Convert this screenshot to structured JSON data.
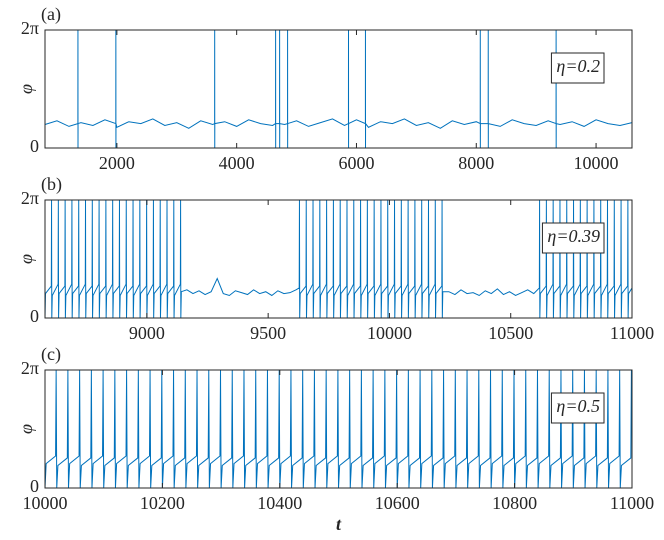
{
  "chart_data": [
    {
      "type": "line",
      "panel_label": "(a)",
      "annotation": "η=0.2",
      "ylabel": "φ",
      "color": "#0072bd",
      "xlim": [
        800,
        10600
      ],
      "xticks": [
        2000,
        4000,
        6000,
        8000,
        10000
      ],
      "ylim": [
        0,
        6.283
      ],
      "yticks": [
        0,
        {
          "value": 6.283,
          "label": "2π"
        }
      ],
      "x": [
        800,
        1000,
        1200,
        1349,
        1350,
        1351,
        1352,
        1400,
        1600,
        1800,
        1982,
        1983,
        1984,
        1985,
        2000,
        2200,
        2400,
        2600,
        2800,
        3000,
        3200,
        3400,
        3600,
        3632,
        3633,
        3634,
        3635,
        3800,
        4000,
        4200,
        4400,
        4600,
        4649,
        4650,
        4651,
        4652,
        4716,
        4717,
        4718,
        4719,
        4800,
        4849,
        4850,
        4851,
        4852,
        5000,
        5200,
        5400,
        5600,
        5800,
        5866,
        5867,
        5868,
        5869,
        6000,
        6149,
        6150,
        6151,
        6152,
        6200,
        6400,
        6600,
        6800,
        7000,
        7200,
        7400,
        7600,
        7800,
        8000,
        8066,
        8067,
        8068,
        8069,
        8199,
        8200,
        8201,
        8202,
        8400,
        8600,
        8800,
        9000,
        9200,
        9332,
        9333,
        9334,
        9335,
        9400,
        9600,
        9800,
        10000,
        10200,
        10400,
        10600
      ],
      "values": [
        1.25,
        1.45,
        1.15,
        1.3,
        6.283,
        0,
        1.3,
        1.35,
        1.2,
        1.5,
        1.3,
        6.283,
        0,
        1.3,
        1.1,
        1.4,
        1.3,
        1.55,
        1.2,
        1.35,
        1.05,
        1.45,
        1.25,
        1.3,
        6.283,
        0,
        1.3,
        1.4,
        1.15,
        1.5,
        1.3,
        1.2,
        1.3,
        6.283,
        0,
        1.3,
        1.3,
        6.283,
        0,
        1.3,
        1.25,
        1.3,
        6.283,
        0,
        1.3,
        1.45,
        1.15,
        1.35,
        1.55,
        1.2,
        1.3,
        6.283,
        0,
        1.3,
        1.5,
        1.3,
        6.283,
        0,
        1.3,
        1.1,
        1.4,
        1.3,
        1.55,
        1.2,
        1.35,
        1.05,
        1.45,
        1.25,
        1.4,
        1.3,
        6.283,
        0,
        1.3,
        1.3,
        6.283,
        0,
        1.3,
        1.15,
        1.5,
        1.3,
        1.2,
        1.45,
        1.3,
        6.283,
        0,
        1.3,
        1.25,
        1.4,
        1.15,
        1.5,
        1.3,
        1.2,
        1.35
      ]
    },
    {
      "type": "line",
      "panel_label": "(b)",
      "annotation": "η=0.39",
      "ylabel": "φ",
      "color": "#0072bd",
      "xlim": [
        8580,
        11000
      ],
      "xticks": [
        9000,
        9500,
        10000,
        10500,
        11000
      ],
      "ylim": [
        0,
        6.283
      ],
      "yticks": [
        0,
        {
          "value": 6.283,
          "label": "2π"
        }
      ],
      "x": [
        8580,
        8582,
        8606,
        8607,
        8608,
        8610,
        8634,
        8635,
        8636,
        8638,
        8662,
        8663,
        8664,
        8666,
        8690,
        8691,
        8692,
        8694,
        8718,
        8719,
        8720,
        8722,
        8746,
        8747,
        8748,
        8750,
        8774,
        8775,
        8776,
        8778,
        8802,
        8803,
        8804,
        8806,
        8830,
        8831,
        8832,
        8834,
        8858,
        8859,
        8860,
        8862,
        8886,
        8887,
        8888,
        8890,
        8914,
        8915,
        8916,
        8918,
        8942,
        8943,
        8944,
        8946,
        8970,
        8971,
        8972,
        8974,
        8998,
        8999,
        9000,
        9002,
        9026,
        9027,
        9028,
        9030,
        9054,
        9055,
        9056,
        9058,
        9082,
        9083,
        9084,
        9086,
        9110,
        9111,
        9112,
        9114,
        9138,
        9139,
        9140,
        9142,
        9165,
        9190,
        9215,
        9240,
        9265,
        9290,
        9315,
        9340,
        9365,
        9390,
        9415,
        9440,
        9465,
        9490,
        9515,
        9540,
        9565,
        9590,
        9615,
        9628,
        9629,
        9630,
        9632,
        9656,
        9657,
        9658,
        9660,
        9684,
        9685,
        9686,
        9688,
        9712,
        9713,
        9714,
        9716,
        9740,
        9741,
        9742,
        9744,
        9768,
        9769,
        9770,
        9772,
        9796,
        9797,
        9798,
        9800,
        9824,
        9825,
        9826,
        9828,
        9852,
        9853,
        9854,
        9856,
        9880,
        9881,
        9882,
        9884,
        9908,
        9909,
        9910,
        9912,
        9936,
        9937,
        9938,
        9940,
        9964,
        9965,
        9966,
        9968,
        9992,
        9993,
        9994,
        9996,
        10020,
        10021,
        10022,
        10024,
        10048,
        10049,
        10050,
        10052,
        10076,
        10077,
        10078,
        10080,
        10104,
        10105,
        10106,
        10108,
        10132,
        10133,
        10134,
        10136,
        10160,
        10161,
        10162,
        10164,
        10188,
        10189,
        10190,
        10192,
        10216,
        10217,
        10218,
        10220,
        10245,
        10270,
        10295,
        10320,
        10345,
        10370,
        10395,
        10420,
        10445,
        10470,
        10495,
        10520,
        10545,
        10570,
        10595,
        10618,
        10619,
        10620,
        10622,
        10646,
        10647,
        10648,
        10650,
        10674,
        10675,
        10676,
        10678,
        10702,
        10703,
        10704,
        10706,
        10730,
        10731,
        10732,
        10734,
        10758,
        10759,
        10760,
        10762,
        10786,
        10787,
        10788,
        10790,
        10814,
        10815,
        10816,
        10818,
        10842,
        10843,
        10844,
        10846,
        10870,
        10871,
        10872,
        10874,
        10898,
        10899,
        10900,
        10902,
        10926,
        10927,
        10928,
        10930,
        10954,
        10955,
        10956,
        10958,
        10982,
        10983,
        10984,
        10986,
        11000
      ],
      "values": [
        0,
        1.3,
        1.7,
        6.283,
        0,
        1.2,
        1.8,
        6.283,
        0,
        1.3,
        1.7,
        6.283,
        0,
        1.2,
        1.8,
        6.283,
        0,
        1.3,
        1.7,
        6.283,
        0,
        1.2,
        1.8,
        6.283,
        0,
        1.3,
        1.7,
        6.283,
        0,
        1.2,
        1.8,
        6.283,
        0,
        1.3,
        1.7,
        6.283,
        0,
        1.2,
        1.8,
        6.283,
        0,
        1.3,
        1.7,
        6.283,
        0,
        1.2,
        1.8,
        6.283,
        0,
        1.3,
        1.7,
        6.283,
        0,
        1.2,
        1.8,
        6.283,
        0,
        1.3,
        1.7,
        6.283,
        0,
        1.2,
        1.8,
        6.283,
        0,
        1.3,
        1.7,
        6.283,
        0,
        1.2,
        1.8,
        6.283,
        0,
        1.3,
        1.7,
        6.283,
        0,
        1.2,
        1.8,
        6.283,
        0,
        1.4,
        1.5,
        1.3,
        1.45,
        1.25,
        1.4,
        2.1,
        1.3,
        1.2,
        1.45,
        1.35,
        1.25,
        1.5,
        1.3,
        1.4,
        1.2,
        1.45,
        1.3,
        1.35,
        1.5,
        1.6,
        6.283,
        0,
        1.3,
        1.7,
        6.283,
        0,
        1.2,
        1.8,
        6.283,
        0,
        1.3,
        1.7,
        6.283,
        0,
        1.2,
        1.8,
        6.283,
        0,
        1.3,
        1.7,
        6.283,
        0,
        1.2,
        1.8,
        6.283,
        0,
        1.3,
        1.7,
        6.283,
        0,
        1.2,
        1.8,
        6.283,
        0,
        1.3,
        1.7,
        6.283,
        0,
        1.2,
        1.8,
        6.283,
        0,
        1.3,
        1.7,
        6.283,
        0,
        1.2,
        1.8,
        6.283,
        0,
        1.3,
        1.7,
        6.283,
        0,
        1.2,
        1.8,
        6.283,
        0,
        1.3,
        1.7,
        6.283,
        0,
        1.2,
        1.8,
        6.283,
        0,
        1.3,
        1.7,
        6.283,
        0,
        1.2,
        1.8,
        6.283,
        0,
        1.3,
        1.7,
        6.283,
        0,
        1.2,
        1.8,
        6.283,
        0,
        1.3,
        1.7,
        6.283,
        0,
        1.4,
        1.4,
        1.25,
        1.5,
        1.3,
        1.35,
        1.2,
        1.45,
        1.3,
        1.55,
        1.25,
        1.4,
        1.2,
        1.35,
        1.5,
        1.3,
        1.6,
        6.283,
        0,
        1.3,
        1.7,
        6.283,
        0,
        1.2,
        1.8,
        6.283,
        0,
        1.3,
        1.7,
        6.283,
        0,
        1.2,
        1.8,
        6.283,
        0,
        1.3,
        1.7,
        6.283,
        0,
        1.2,
        1.8,
        6.283,
        0,
        1.3,
        1.7,
        6.283,
        0,
        1.2,
        1.8,
        6.283,
        0,
        1.3,
        1.7,
        6.283,
        0,
        1.2,
        1.8,
        6.283,
        0,
        1.3,
        1.7,
        6.283,
        0,
        1.2,
        1.8,
        6.283,
        0,
        1.3,
        1.7,
        6.283,
        0,
        1.3,
        1.6
      ]
    },
    {
      "type": "line",
      "panel_label": "(c)",
      "annotation": "η=0.5",
      "ylabel": "φ",
      "xlabel": "t",
      "color": "#0072bd",
      "xlim": [
        10000,
        11000
      ],
      "xticks": [
        10000,
        10200,
        10400,
        10600,
        10800,
        11000
      ],
      "ylim": [
        0,
        6.283
      ],
      "yticks": [
        0,
        {
          "value": 6.283,
          "label": "2π"
        }
      ],
      "x": [
        10000,
        10002,
        10018,
        10019,
        10020,
        10022,
        10038,
        10039,
        10040,
        10042,
        10058,
        10059,
        10060,
        10062,
        10078,
        10079,
        10080,
        10082,
        10098,
        10099,
        10100,
        10102,
        10118,
        10119,
        10120,
        10122,
        10138,
        10139,
        10140,
        10142,
        10158,
        10159,
        10160,
        10162,
        10178,
        10179,
        10180,
        10182,
        10198,
        10199,
        10200,
        10202,
        10218,
        10219,
        10220,
        10222,
        10238,
        10239,
        10240,
        10242,
        10258,
        10259,
        10260,
        10262,
        10278,
        10279,
        10280,
        10282,
        10298,
        10299,
        10300,
        10302,
        10318,
        10319,
        10320,
        10322,
        10338,
        10339,
        10340,
        10342,
        10358,
        10359,
        10360,
        10362,
        10378,
        10379,
        10380,
        10382,
        10398,
        10399,
        10400,
        10402,
        10418,
        10419,
        10420,
        10422,
        10438,
        10439,
        10440,
        10442,
        10458,
        10459,
        10460,
        10462,
        10478,
        10479,
        10480,
        10482,
        10498,
        10499,
        10500,
        10502,
        10518,
        10519,
        10520,
        10522,
        10538,
        10539,
        10540,
        10542,
        10558,
        10559,
        10560,
        10562,
        10578,
        10579,
        10580,
        10582,
        10598,
        10599,
        10600,
        10602,
        10618,
        10619,
        10620,
        10622,
        10638,
        10639,
        10640,
        10642,
        10658,
        10659,
        10660,
        10662,
        10678,
        10679,
        10680,
        10682,
        10698,
        10699,
        10700,
        10702,
        10718,
        10719,
        10720,
        10722,
        10738,
        10739,
        10740,
        10742,
        10758,
        10759,
        10760,
        10762,
        10778,
        10779,
        10780,
        10782,
        10798,
        10799,
        10800,
        10802,
        10818,
        10819,
        10820,
        10822,
        10838,
        10839,
        10840,
        10842,
        10858,
        10859,
        10860,
        10862,
        10878,
        10879,
        10880,
        10882,
        10898,
        10899,
        10900,
        10902,
        10918,
        10919,
        10920,
        10922,
        10938,
        10939,
        10940,
        10942,
        10958,
        10959,
        10960,
        10962,
        10978,
        10979,
        10980,
        10982,
        10998,
        10999
      ],
      "values": [
        0,
        1.3,
        1.7,
        6.283,
        0,
        1.2,
        1.6,
        6.283,
        0,
        1.3,
        1.7,
        6.283,
        0,
        1.2,
        1.6,
        6.283,
        0,
        1.3,
        1.7,
        6.283,
        0,
        1.2,
        1.6,
        6.283,
        0,
        1.3,
        1.7,
        6.283,
        0,
        1.2,
        1.6,
        6.283,
        0,
        1.3,
        1.7,
        6.283,
        0,
        1.2,
        1.6,
        6.283,
        0,
        1.3,
        1.7,
        6.283,
        0,
        1.2,
        1.6,
        6.283,
        0,
        1.3,
        1.7,
        6.283,
        0,
        1.2,
        1.6,
        6.283,
        0,
        1.3,
        1.7,
        6.283,
        0,
        1.2,
        1.6,
        6.283,
        0,
        1.3,
        1.7,
        6.283,
        0,
        1.2,
        1.6,
        6.283,
        0,
        1.3,
        1.7,
        6.283,
        0,
        1.2,
        1.6,
        6.283,
        0,
        1.3,
        1.7,
        6.283,
        0,
        1.2,
        1.6,
        6.283,
        0,
        1.3,
        1.7,
        6.283,
        0,
        1.2,
        1.6,
        6.283,
        0,
        1.3,
        1.7,
        6.283,
        0,
        1.2,
        1.6,
        6.283,
        0,
        1.3,
        1.7,
        6.283,
        0,
        1.2,
        1.6,
        6.283,
        0,
        1.3,
        1.7,
        6.283,
        0,
        1.2,
        1.6,
        6.283,
        0,
        1.3,
        1.7,
        6.283,
        0,
        1.2,
        1.6,
        6.283,
        0,
        1.3,
        1.7,
        6.283,
        0,
        1.2,
        1.6,
        6.283,
        0,
        1.3,
        1.7,
        6.283,
        0,
        1.2,
        1.6,
        6.283,
        0,
        1.3,
        1.7,
        6.283,
        0,
        1.2,
        1.6,
        6.283,
        0,
        1.3,
        1.7,
        6.283,
        0,
        1.2,
        1.6,
        6.283,
        0,
        1.3,
        1.7,
        6.283,
        0,
        1.2,
        1.6,
        6.283,
        0,
        1.3,
        1.7,
        6.283,
        0,
        1.2,
        1.6,
        6.283,
        0,
        1.3,
        1.7,
        6.283,
        0,
        1.2,
        1.6,
        6.283,
        0,
        1.3,
        1.7,
        6.283,
        0,
        1.2,
        1.6,
        6.283,
        0,
        1.3,
        1.7,
        6.283,
        0,
        1.2,
        1.6,
        6.283
      ]
    }
  ]
}
